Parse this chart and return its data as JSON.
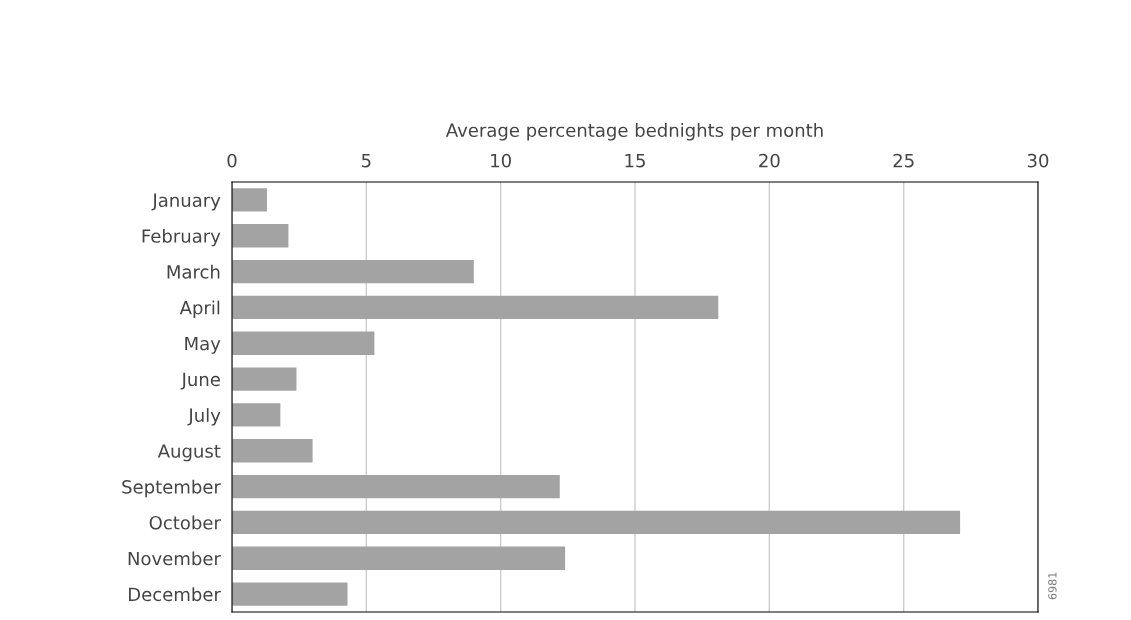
{
  "chart_data": {
    "type": "bar",
    "orientation": "horizontal",
    "xlabel": "Average percentage bednights per month",
    "categories": [
      "January",
      "February",
      "March",
      "April",
      "May",
      "June",
      "July",
      "August",
      "September",
      "October",
      "November",
      "December"
    ],
    "values": [
      1.3,
      2.1,
      9.0,
      18.1,
      5.3,
      2.4,
      1.8,
      3.0,
      12.2,
      27.1,
      12.4,
      4.3
    ],
    "color": "#a3a3a3",
    "xlim": [
      0,
      30
    ],
    "xticks": [
      0,
      5,
      10,
      15,
      20,
      25,
      30
    ],
    "grid": "x",
    "annotations": [
      "6981"
    ]
  }
}
